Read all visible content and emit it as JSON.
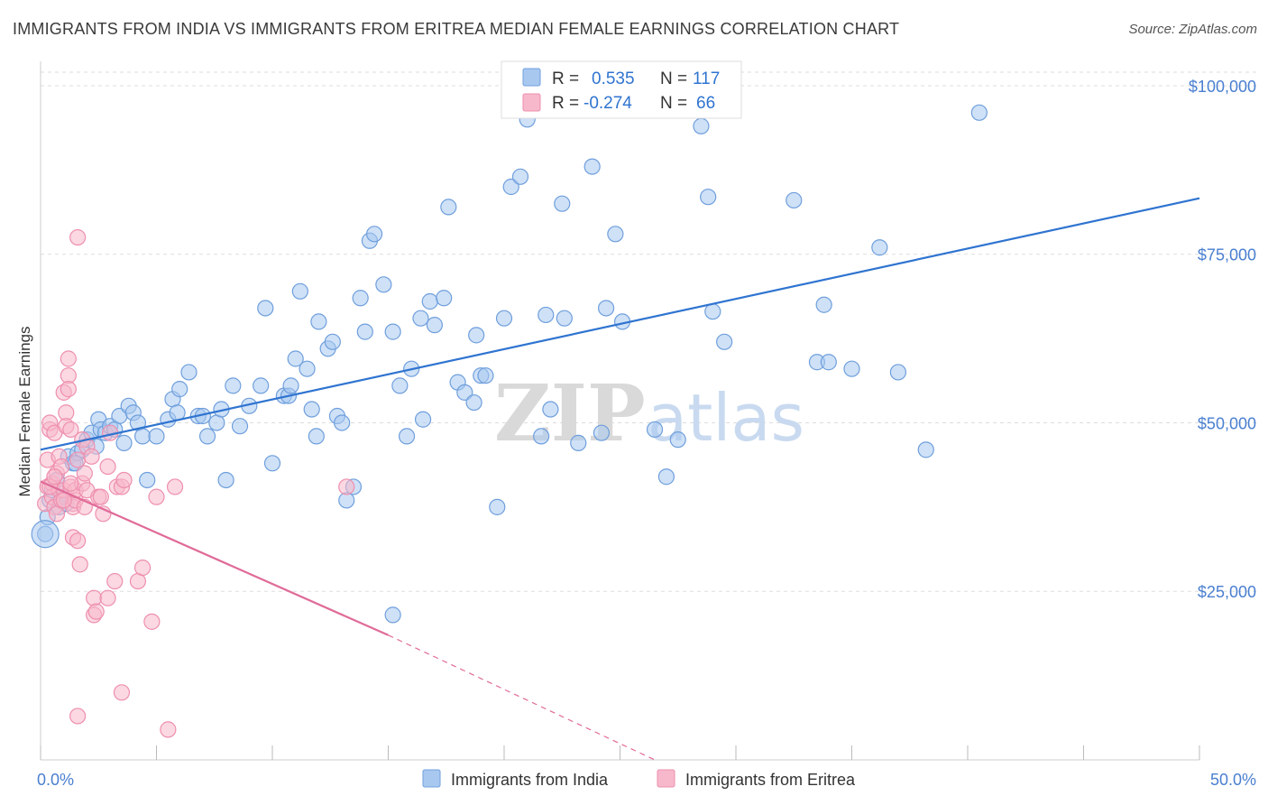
{
  "title": "IMMIGRANTS FROM INDIA VS IMMIGRANTS FROM ERITREA MEDIAN FEMALE EARNINGS CORRELATION CHART",
  "source": "Source: ZipAtlas.com",
  "watermark": {
    "zip": "ZIP",
    "atlas": "atlas"
  },
  "colors": {
    "india_fill": "#a8c8f0",
    "india_stroke": "#6f9fdc",
    "india_line": "#2f74d0",
    "eritrea_fill": "#f7b8cb",
    "eritrea_stroke": "#ee8fae",
    "eritrea_line": "#e06b98",
    "axis_text": "#4a7fd0",
    "grid": "#dddddd"
  },
  "legend": {
    "india": {
      "r_label": "R =",
      "r_value": "0.535",
      "n_label": "N =",
      "n_value": "117"
    },
    "eritrea": {
      "r_label": "R =",
      "r_value": "-0.274",
      "n_label": "N =",
      "n_value": "66"
    }
  },
  "chart_data": {
    "type": "scatter",
    "title": "IMMIGRANTS FROM INDIA VS IMMIGRANTS FROM ERITREA MEDIAN FEMALE EARNINGS CORRELATION CHART",
    "xlabel": "",
    "ylabel": "Median Female Earnings",
    "xlim": [
      0,
      50
    ],
    "ylim": [
      0,
      102000
    ],
    "x_tick_labels": [
      "0.0%",
      "50.0%"
    ],
    "y_ticks": [
      25000,
      50000,
      75000,
      100000
    ],
    "y_tick_labels": [
      "$25,000",
      "$50,000",
      "$75,000",
      "$100,000"
    ],
    "grid": true,
    "series": [
      {
        "name": "Immigrants from India",
        "r": 0.535,
        "n": 117,
        "trend": {
          "x": [
            0,
            50
          ],
          "y": [
            46000,
            83300
          ],
          "dashed_after": null
        },
        "points": [
          [
            0.3,
            36000
          ],
          [
            0.4,
            38500
          ],
          [
            0.5,
            40000
          ],
          [
            0.7,
            41500
          ],
          [
            0.8,
            37500
          ],
          [
            1.0,
            39000
          ],
          [
            1.1,
            38000
          ],
          [
            1.2,
            45000
          ],
          [
            1.4,
            44000
          ],
          [
            1.6,
            45500
          ],
          [
            1.8,
            46000
          ],
          [
            2.0,
            47500
          ],
          [
            2.2,
            48500
          ],
          [
            2.5,
            50500
          ],
          [
            2.6,
            49000
          ],
          [
            2.8,
            48500
          ],
          [
            3.0,
            49500
          ],
          [
            3.4,
            51000
          ],
          [
            3.6,
            47000
          ],
          [
            3.8,
            52500
          ],
          [
            4.0,
            51500
          ],
          [
            4.2,
            50000
          ],
          [
            4.4,
            48000
          ],
          [
            4.6,
            41500
          ],
          [
            5.0,
            48000
          ],
          [
            5.5,
            50500
          ],
          [
            5.7,
            53500
          ],
          [
            5.9,
            51500
          ],
          [
            6.0,
            55000
          ],
          [
            6.4,
            57500
          ],
          [
            6.8,
            51000
          ],
          [
            7.0,
            51000
          ],
          [
            7.2,
            48000
          ],
          [
            7.6,
            50000
          ],
          [
            7.8,
            52000
          ],
          [
            8.0,
            41500
          ],
          [
            8.3,
            55500
          ],
          [
            8.6,
            49500
          ],
          [
            9.0,
            52500
          ],
          [
            9.5,
            55500
          ],
          [
            9.7,
            67000
          ],
          [
            10.0,
            44000
          ],
          [
            10.5,
            54000
          ],
          [
            10.7,
            54000
          ],
          [
            10.8,
            55500
          ],
          [
            11.0,
            59500
          ],
          [
            11.2,
            69500
          ],
          [
            11.5,
            58000
          ],
          [
            11.7,
            52000
          ],
          [
            11.9,
            48000
          ],
          [
            12.0,
            65000
          ],
          [
            12.4,
            61000
          ],
          [
            12.6,
            62000
          ],
          [
            12.8,
            51000
          ],
          [
            13.0,
            50000
          ],
          [
            13.2,
            38500
          ],
          [
            13.5,
            40500
          ],
          [
            13.8,
            68500
          ],
          [
            14.0,
            63500
          ],
          [
            14.2,
            77000
          ],
          [
            14.4,
            78000
          ],
          [
            14.8,
            70500
          ],
          [
            15.2,
            63500
          ],
          [
            15.5,
            55500
          ],
          [
            15.8,
            48000
          ],
          [
            16.0,
            58000
          ],
          [
            16.4,
            65500
          ],
          [
            16.5,
            50500
          ],
          [
            16.8,
            68000
          ],
          [
            17.0,
            64500
          ],
          [
            17.4,
            68500
          ],
          [
            17.6,
            82000
          ],
          [
            18.0,
            56000
          ],
          [
            18.3,
            54500
          ],
          [
            18.7,
            53000
          ],
          [
            18.8,
            63000
          ],
          [
            19.0,
            57000
          ],
          [
            19.2,
            57000
          ],
          [
            19.7,
            37500
          ],
          [
            20.0,
            65500
          ],
          [
            20.3,
            85000
          ],
          [
            20.7,
            86500
          ],
          [
            21.0,
            95000
          ],
          [
            21.6,
            48000
          ],
          [
            21.8,
            66000
          ],
          [
            22.0,
            52000
          ],
          [
            22.5,
            82500
          ],
          [
            22.6,
            65500
          ],
          [
            23.2,
            47000
          ],
          [
            23.8,
            88000
          ],
          [
            24.2,
            48500
          ],
          [
            24.4,
            67000
          ],
          [
            24.8,
            78000
          ],
          [
            25.1,
            65000
          ],
          [
            26.5,
            49000
          ],
          [
            27.0,
            42000
          ],
          [
            27.5,
            47500
          ],
          [
            28.5,
            94000
          ],
          [
            28.8,
            83500
          ],
          [
            29.0,
            66500
          ],
          [
            29.5,
            62000
          ],
          [
            32.5,
            83000
          ],
          [
            33.5,
            59000
          ],
          [
            33.8,
            67500
          ],
          [
            34.0,
            59000
          ],
          [
            35.0,
            58000
          ],
          [
            36.2,
            76000
          ],
          [
            37.0,
            57500
          ],
          [
            38.2,
            46000
          ],
          [
            40.5,
            96000
          ],
          [
            15.2,
            21500
          ],
          [
            0.2,
            33500
          ],
          [
            1.5,
            44000
          ],
          [
            2.4,
            46500
          ],
          [
            3.2,
            49000
          ]
        ]
      },
      {
        "name": "Immigrants from Eritrea",
        "r": -0.274,
        "n": 66,
        "trend": {
          "x": [
            0,
            15,
            26.5
          ],
          "y": [
            41300,
            18500,
            0
          ],
          "dashed_after": 15
        },
        "points": [
          [
            0.2,
            38000
          ],
          [
            0.3,
            40500
          ],
          [
            0.3,
            44500
          ],
          [
            0.4,
            49000
          ],
          [
            0.4,
            50000
          ],
          [
            0.5,
            41000
          ],
          [
            0.5,
            39000
          ],
          [
            0.6,
            37500
          ],
          [
            0.6,
            48500
          ],
          [
            0.7,
            36500
          ],
          [
            0.7,
            42500
          ],
          [
            0.8,
            40000
          ],
          [
            0.8,
            45000
          ],
          [
            0.9,
            43500
          ],
          [
            0.9,
            38500
          ],
          [
            1.0,
            40000
          ],
          [
            1.0,
            54500
          ],
          [
            1.1,
            51500
          ],
          [
            1.1,
            49500
          ],
          [
            1.2,
            59500
          ],
          [
            1.2,
            57000
          ],
          [
            1.2,
            55000
          ],
          [
            1.3,
            49000
          ],
          [
            1.3,
            40500
          ],
          [
            1.4,
            38000
          ],
          [
            1.4,
            37500
          ],
          [
            1.4,
            33000
          ],
          [
            1.5,
            38500
          ],
          [
            1.5,
            40000
          ],
          [
            1.6,
            44500
          ],
          [
            1.6,
            32500
          ],
          [
            1.7,
            29000
          ],
          [
            1.8,
            41000
          ],
          [
            1.8,
            47500
          ],
          [
            1.6,
            6500
          ],
          [
            1.6,
            77500
          ],
          [
            1.9,
            42500
          ],
          [
            1.9,
            37500
          ],
          [
            2.0,
            40000
          ],
          [
            2.0,
            46500
          ],
          [
            2.2,
            45000
          ],
          [
            2.3,
            24000
          ],
          [
            2.3,
            21500
          ],
          [
            2.4,
            22000
          ],
          [
            2.5,
            39000
          ],
          [
            2.6,
            39000
          ],
          [
            2.7,
            36500
          ],
          [
            2.9,
            24000
          ],
          [
            2.9,
            43500
          ],
          [
            3.0,
            48500
          ],
          [
            3.2,
            26500
          ],
          [
            3.3,
            40500
          ],
          [
            3.5,
            40500
          ],
          [
            3.5,
            10000
          ],
          [
            3.6,
            41500
          ],
          [
            4.2,
            26500
          ],
          [
            4.4,
            28500
          ],
          [
            4.8,
            20500
          ],
          [
            5.0,
            39000
          ],
          [
            5.5,
            4500
          ],
          [
            5.8,
            40500
          ],
          [
            13.2,
            40500
          ],
          [
            0.4,
            40500
          ],
          [
            0.6,
            42000
          ],
          [
            1.0,
            38500
          ],
          [
            1.3,
            41000
          ]
        ]
      }
    ],
    "legend_labels": [
      "Immigrants from India",
      "Immigrants from Eritrea"
    ]
  }
}
